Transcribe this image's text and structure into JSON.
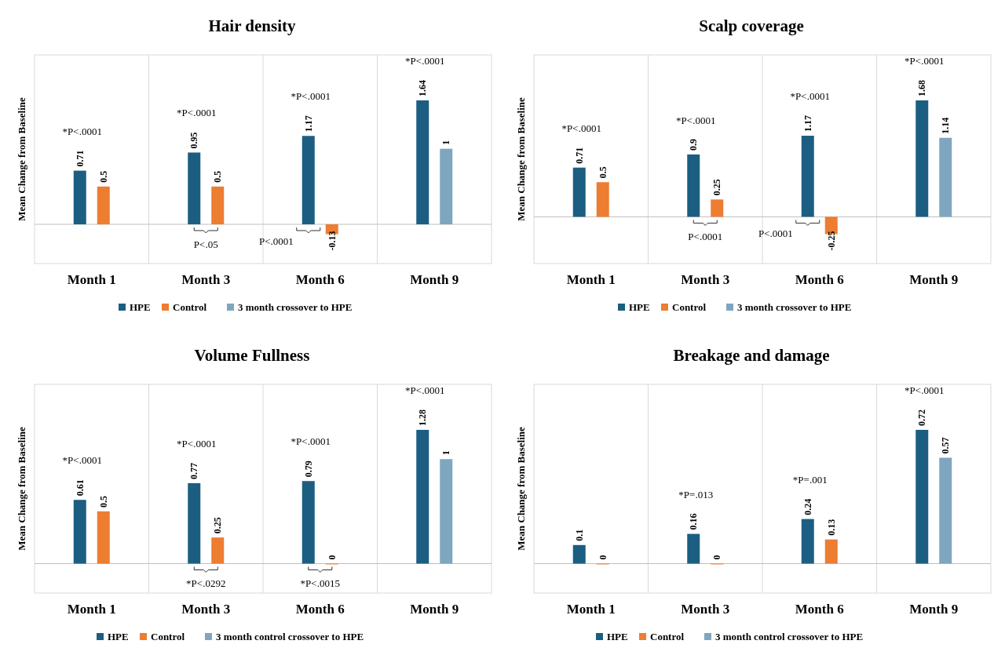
{
  "chart_data": [
    {
      "type": "bar",
      "title": "Hair density",
      "ylabel": "Mean Change from Baseline",
      "categories": [
        "Month 1",
        "Month 3",
        "Month 6",
        "Month 9"
      ],
      "series": [
        {
          "name": "HPE",
          "color": "#1b5e82",
          "values": [
            0.71,
            0.95,
            1.17,
            1.64
          ]
        },
        {
          "name": "Control",
          "color": "#ed7d31",
          "values": [
            0.5,
            0.5,
            -0.13,
            null
          ]
        },
        {
          "name": "3 month crossover to HPE",
          "color": "#7fa6bf",
          "values": [
            null,
            null,
            null,
            1
          ]
        }
      ],
      "data_labels": true,
      "grid": "x",
      "legend": "bottom",
      "annotations": [
        "*P<.0001",
        "*P<.0001",
        "*P<.0001",
        "*P<.0001",
        "P<.05",
        "P<.0001"
      ]
    },
    {
      "type": "bar",
      "title": "Scalp coverage",
      "ylabel": "Mean Change from Baseline",
      "categories": [
        "Month 1",
        "Month 3",
        "Month 6",
        "Month 9"
      ],
      "series": [
        {
          "name": "HPE",
          "color": "#1b5e82",
          "values": [
            0.71,
            0.9,
            1.17,
            1.68
          ]
        },
        {
          "name": "Control",
          "color": "#ed7d31",
          "values": [
            0.5,
            0.25,
            -0.25,
            null
          ]
        },
        {
          "name": "3 month crossover to HPE",
          "color": "#7fa6bf",
          "values": [
            null,
            null,
            null,
            1.14
          ]
        }
      ],
      "data_labels": true,
      "grid": "x",
      "legend": "bottom",
      "annotations": [
        "*P<.0001",
        "*P<.0001",
        "*P<.0001",
        "*P<.0001",
        "P<.0001",
        "P<.0001"
      ]
    },
    {
      "type": "bar",
      "title": "Volume Fullness",
      "ylabel": "Mean Change from Baseline",
      "categories": [
        "Month 1",
        "Month 3",
        "Month 6",
        "Month 9"
      ],
      "series": [
        {
          "name": "HPE",
          "color": "#1b5e82",
          "values": [
            0.61,
            0.77,
            0.79,
            1.28
          ]
        },
        {
          "name": "Control",
          "color": "#ed7d31",
          "values": [
            0.5,
            0.25,
            0,
            null
          ]
        },
        {
          "name": "3 month control crossover to HPE",
          "color": "#7fa6bf",
          "values": [
            null,
            null,
            null,
            1
          ]
        }
      ],
      "data_labels": true,
      "grid": "x",
      "legend": "bottom",
      "annotations": [
        "*P<.0001",
        "*P<.0001",
        "*P<.0001",
        "*P<.0001",
        "*P<.0292",
        "*P<.0015"
      ]
    },
    {
      "type": "bar",
      "title": "Breakage and damage",
      "ylabel": "Mean Change from Baseline",
      "categories": [
        "Month 1",
        "Month 3",
        "Month 6",
        "Month 9"
      ],
      "series": [
        {
          "name": "HPE",
          "color": "#1b5e82",
          "values": [
            0.1,
            0.16,
            0.24,
            0.72
          ]
        },
        {
          "name": "Control",
          "color": "#ed7d31",
          "values": [
            0,
            0,
            0.13,
            null
          ]
        },
        {
          "name": "3 month control crossover to HPE",
          "color": "#7fa6bf",
          "values": [
            null,
            null,
            null,
            0.57
          ]
        }
      ],
      "data_labels": true,
      "grid": "x",
      "legend": "bottom",
      "annotations": [
        "*P=.013",
        "*P=.001",
        "*P<.0001"
      ]
    }
  ]
}
